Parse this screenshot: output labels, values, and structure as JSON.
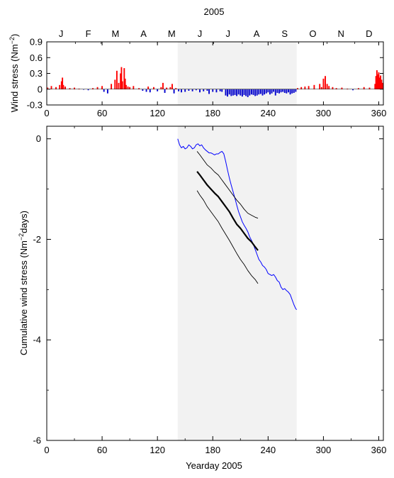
{
  "chart_data": [
    {
      "type": "bar",
      "title": "2005",
      "ylabel": "Wind stress (Nm⁻²)",
      "ylabel_main": "Wind stress (Nm",
      "ylabel_sup": "−2",
      "ylabel_end": ")",
      "xlim": [
        0,
        365
      ],
      "ylim": [
        -0.3,
        0.9
      ],
      "yticks": [
        -0.3,
        0,
        0.3,
        0.6,
        0.9
      ],
      "ytick_labels": [
        "-0.3",
        "0",
        "0.3",
        "0.6",
        "0.9"
      ],
      "xticks": [
        0,
        60,
        120,
        180,
        240,
        300,
        360
      ],
      "xtick_labels": [
        "0",
        "60",
        "120",
        "180",
        "240",
        "300",
        "360"
      ],
      "months": [
        "J",
        "F",
        "M",
        "A",
        "M",
        "J",
        "J",
        "A",
        "S",
        "O",
        "N",
        "D"
      ],
      "shaded_period": [
        142,
        271
      ],
      "colors": {
        "positive": "#ff0000",
        "negative": "#0000cc",
        "shade": "#f2f2f2"
      },
      "series": [
        {
          "name": "",
          "x": [
            1,
            5,
            10,
            14,
            16,
            17,
            18,
            20,
            25,
            30,
            35,
            40,
            45,
            50,
            55,
            60,
            62,
            66,
            70,
            74,
            76,
            78,
            80,
            81,
            82,
            84,
            85,
            86,
            88,
            90,
            94,
            100,
            104,
            108,
            110,
            112,
            116,
            120,
            124,
            126,
            128,
            130,
            134,
            136,
            138,
            140,
            143,
            146,
            150,
            154,
            158,
            162,
            166,
            170,
            174,
            176,
            180,
            184,
            188,
            190,
            194,
            196,
            198,
            200,
            202,
            204,
            206,
            208,
            210,
            212,
            214,
            216,
            218,
            220,
            222,
            224,
            226,
            228,
            230,
            232,
            234,
            236,
            238,
            240,
            242,
            244,
            246,
            248,
            250,
            252,
            254,
            256,
            258,
            260,
            262,
            264,
            266,
            268,
            270,
            272,
            276,
            280,
            284,
            290,
            296,
            298,
            300,
            302,
            304,
            306,
            310,
            314,
            320,
            326,
            332,
            338,
            344,
            350,
            356,
            357,
            358,
            359,
            360,
            361,
            362,
            363,
            364
          ],
          "values": [
            0.03,
            0.06,
            0.04,
            0.08,
            0.15,
            0.22,
            0.08,
            0.05,
            0.02,
            0.03,
            0.01,
            -0.01,
            -0.02,
            0.02,
            0.04,
            0.06,
            -0.05,
            -0.08,
            0.1,
            0.18,
            0.35,
            0.12,
            0.3,
            0.42,
            0.15,
            0.4,
            0.2,
            0.08,
            0.05,
            0.04,
            0.06,
            0.02,
            -0.03,
            -0.05,
            0.05,
            -0.06,
            0.04,
            -0.04,
            0.04,
            0.12,
            -0.07,
            0.03,
            0.04,
            0.1,
            -0.08,
            0.02,
            -0.04,
            -0.06,
            -0.05,
            -0.03,
            -0.04,
            -0.02,
            -0.06,
            -0.04,
            -0.03,
            -0.09,
            -0.05,
            -0.06,
            -0.04,
            -0.05,
            -0.12,
            -0.14,
            -0.1,
            -0.13,
            -0.12,
            -0.11,
            -0.13,
            -0.1,
            -0.12,
            -0.14,
            -0.11,
            -0.13,
            -0.15,
            -0.12,
            -0.1,
            -0.11,
            -0.13,
            -0.12,
            -0.1,
            -0.09,
            -0.12,
            -0.1,
            -0.08,
            -0.06,
            -0.1,
            -0.08,
            -0.05,
            -0.12,
            -0.07,
            -0.08,
            -0.06,
            -0.05,
            -0.07,
            -0.08,
            -0.06,
            -0.1,
            -0.08,
            -0.07,
            -0.05,
            0.02,
            0.04,
            0.05,
            0.06,
            0.08,
            0.1,
            0.04,
            0.2,
            0.25,
            0.1,
            0.06,
            0.04,
            0.02,
            0.03,
            0.01,
            -0.02,
            0.02,
            0.04,
            0.03,
            0.1,
            0.25,
            0.36,
            0.28,
            0.32,
            0.22,
            0.26,
            0.18,
            0.12
          ]
        }
      ]
    },
    {
      "type": "line",
      "xlabel": "Yearday 2005",
      "ylabel": "Cumulative wind stress (Nm⁻²days)",
      "ylabel_main": "Cumulative wind stress (Nm",
      "ylabel_sup": "−2",
      "ylabel_end": "days)",
      "xlim": [
        0,
        365
      ],
      "ylim": [
        -6,
        0.25
      ],
      "yticks": [
        -6,
        -4,
        -2,
        0
      ],
      "ytick_labels": [
        "-6",
        "-4",
        "-2",
        "0"
      ],
      "xticks": [
        0,
        60,
        120,
        180,
        240,
        300,
        360
      ],
      "xtick_labels": [
        "0",
        "60",
        "120",
        "180",
        "240",
        "300",
        "360"
      ],
      "shaded_period": [
        142,
        271
      ],
      "series": [
        {
          "name": "",
          "color": "#0000ff",
          "width": 1,
          "x": [
            142,
            144,
            146,
            148,
            150,
            152,
            154,
            156,
            158,
            160,
            162,
            164,
            166,
            168,
            170,
            172,
            174,
            176,
            178,
            180,
            182,
            184,
            186,
            188,
            190,
            192,
            194,
            196,
            198,
            200,
            202,
            204,
            206,
            208,
            210,
            212,
            214,
            216,
            218,
            220,
            222,
            224,
            226,
            228,
            230,
            232,
            234,
            236,
            238,
            240,
            242,
            244,
            246,
            248,
            250,
            252,
            254,
            256,
            258,
            260,
            262,
            264,
            266,
            268,
            270,
            271
          ],
          "y": [
            0.0,
            -0.12,
            -0.18,
            -0.15,
            -0.2,
            -0.18,
            -0.12,
            -0.15,
            -0.2,
            -0.18,
            -0.12,
            -0.1,
            -0.14,
            -0.12,
            -0.18,
            -0.22,
            -0.25,
            -0.28,
            -0.28,
            -0.3,
            -0.32,
            -0.3,
            -0.3,
            -0.27,
            -0.25,
            -0.3,
            -0.45,
            -0.62,
            -0.78,
            -0.92,
            -1.05,
            -1.18,
            -1.32,
            -1.45,
            -1.55,
            -1.65,
            -1.72,
            -1.78,
            -1.85,
            -1.95,
            -2.02,
            -2.1,
            -2.2,
            -2.3,
            -2.4,
            -2.45,
            -2.52,
            -2.55,
            -2.6,
            -2.68,
            -2.7,
            -2.72,
            -2.7,
            -2.75,
            -2.82,
            -2.85,
            -2.95,
            -3.0,
            -2.98,
            -3.02,
            -3.05,
            -3.1,
            -3.2,
            -3.3,
            -3.38,
            -3.4
          ]
        },
        {
          "name": "",
          "color": "#000000",
          "width": 2.2,
          "x": [
            163,
            166,
            170,
            174,
            178,
            182,
            186,
            190,
            194,
            198,
            202,
            206,
            210,
            214,
            218,
            222,
            226,
            229
          ],
          "y": [
            -0.65,
            -0.72,
            -0.82,
            -0.92,
            -1.0,
            -1.08,
            -1.15,
            -1.25,
            -1.35,
            -1.45,
            -1.58,
            -1.7,
            -1.78,
            -1.88,
            -1.98,
            -2.05,
            -2.15,
            -2.22
          ]
        },
        {
          "name": "",
          "color": "#000000",
          "width": 0.9,
          "x": [
            163,
            166,
            170,
            174,
            178,
            182,
            186,
            190,
            194,
            198,
            202,
            206,
            210,
            214,
            218,
            222,
            226,
            229
          ],
          "y": [
            -0.25,
            -0.32,
            -0.42,
            -0.52,
            -0.58,
            -0.66,
            -0.72,
            -0.82,
            -0.92,
            -1.02,
            -1.12,
            -1.22,
            -1.3,
            -1.4,
            -1.48,
            -1.52,
            -1.56,
            -1.58
          ]
        },
        {
          "name": "",
          "color": "#000000",
          "width": 0.9,
          "x": [
            163,
            166,
            170,
            174,
            178,
            182,
            186,
            190,
            194,
            198,
            202,
            206,
            210,
            214,
            218,
            222,
            226,
            229
          ],
          "y": [
            -1.03,
            -1.12,
            -1.22,
            -1.35,
            -1.45,
            -1.55,
            -1.65,
            -1.78,
            -1.9,
            -2.02,
            -2.15,
            -2.28,
            -2.4,
            -2.5,
            -2.62,
            -2.72,
            -2.8,
            -2.88
          ]
        }
      ]
    }
  ]
}
